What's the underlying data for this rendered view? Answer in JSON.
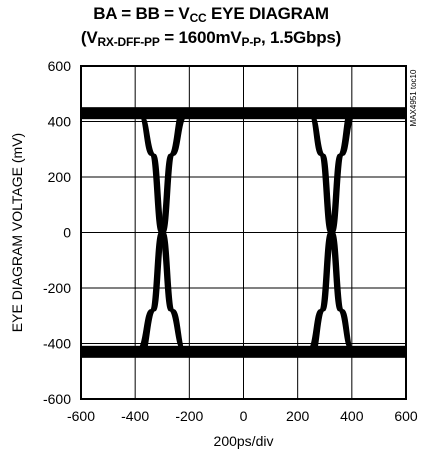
{
  "title_line1": {
    "t1": "BA = BB = V",
    "s1": "CC",
    "t2": " EYE DIAGRAM"
  },
  "title_line2": {
    "t1": "(V",
    "s1": "RX-DFF-PP",
    "t2": " = 1600mV",
    "s2": "P-P",
    "t3": ", 1.5Gbps)"
  },
  "side_note": "MAX4951 toc10",
  "chart_data": {
    "type": "line",
    "title": "BA = BB = VCC EYE DIAGRAM (VRX-DFF-PP = 1600mVP-P, 1.5Gbps)",
    "xlabel": "200ps/div",
    "ylabel": "EYE DIAGRAM VOLTAGE (mV)",
    "xlim": [
      -600,
      600
    ],
    "ylim": [
      -600,
      600
    ],
    "xticks": [
      "-600",
      "-400",
      "-200",
      "0",
      "200",
      "400",
      "600"
    ],
    "yticks": [
      "600",
      "400",
      "200",
      "0",
      "-200",
      "-400",
      "-600"
    ],
    "grid": true,
    "series": [
      {
        "values": [
          [
            -600,
            430
          ],
          [
            -380,
            430
          ],
          [
            -335,
            280
          ],
          [
            -300,
            0
          ],
          [
            -265,
            -280
          ],
          [
            -220,
            -430
          ],
          [
            600,
            -430
          ]
        ]
      },
      {
        "values": [
          [
            -600,
            -430
          ],
          [
            -380,
            -430
          ],
          [
            -335,
            -280
          ],
          [
            -300,
            0
          ],
          [
            -265,
            280
          ],
          [
            -220,
            430
          ],
          [
            600,
            430
          ]
        ]
      },
      {
        "values": [
          [
            -600,
            430
          ],
          [
            250,
            430
          ],
          [
            290,
            280
          ],
          [
            325,
            0
          ],
          [
            360,
            -280
          ],
          [
            400,
            -430
          ],
          [
            600,
            -430
          ]
        ]
      },
      {
        "values": [
          [
            -600,
            -430
          ],
          [
            250,
            -430
          ],
          [
            290,
            -280
          ],
          [
            325,
            0
          ],
          [
            360,
            280
          ],
          [
            400,
            430
          ],
          [
            600,
            430
          ]
        ]
      }
    ],
    "levels": {
      "high_mV": 430,
      "low_mV": -430
    },
    "crossings_ps": [
      -300,
      325
    ]
  }
}
